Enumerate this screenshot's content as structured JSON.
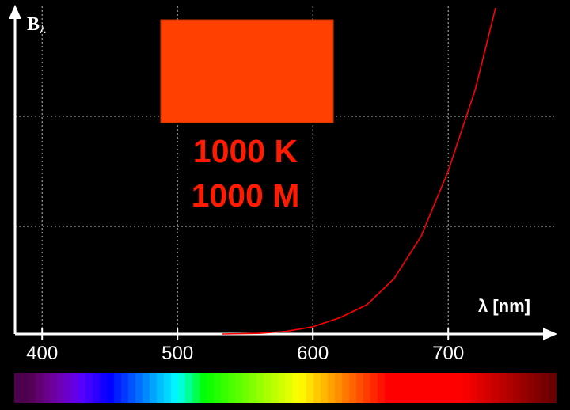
{
  "chart_data": {
    "type": "line",
    "title": "",
    "ylabel": "B",
    "ylabel_sub": "λ",
    "xlabel": "λ [nm]",
    "xlim": [
      380,
      780
    ],
    "ylim": [
      0,
      1
    ],
    "x_ticks": [
      400,
      500,
      600,
      700
    ],
    "x_tick_labels": [
      "400",
      "500",
      "600",
      "700"
    ],
    "grid": true,
    "series": [
      {
        "color": "#ff0000",
        "x": [
          533,
          560,
          580,
          600,
          620,
          640,
          660,
          680,
          700,
          720,
          735
        ],
        "y": [
          0.0,
          0.002,
          0.008,
          0.022,
          0.05,
          0.09,
          0.17,
          0.3,
          0.5,
          0.75,
          1.0
        ]
      }
    ]
  },
  "swatch_color": "#ff4000",
  "temperature_label": "1000 K",
  "magnitude_label": "1000 M",
  "colors": {
    "background": "#000000",
    "axis": "#ffffff",
    "grid": "#bbbbbb",
    "curve": "#ff0000",
    "label_red": "#ff1a00"
  }
}
